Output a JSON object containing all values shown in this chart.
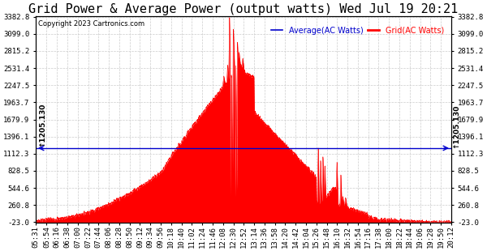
{
  "title": "Grid Power & Average Power (output watts) Wed Jul 19 20:21",
  "copyright": "Copyright 2023 Cartronics.com",
  "legend_avg": "Average(AC Watts)",
  "legend_grid": "Grid(AC Watts)",
  "ymin": -23.0,
  "ymax": 3382.8,
  "yticks": [
    -23.0,
    260.8,
    544.6,
    828.5,
    1112.3,
    1396.1,
    1679.9,
    1963.7,
    2247.5,
    2531.4,
    2815.2,
    3099.0,
    3382.8
  ],
  "hline_value": 1205.13,
  "hline_label": "1205.130",
  "avg_color": "#0000cc",
  "grid_fill_color": "#ff0000",
  "background_color": "#ffffff",
  "grid_line_color": "#cccccc",
  "title_fontsize": 11,
  "tick_fontsize": 6.5,
  "copyright_fontsize": 6,
  "legend_fontsize": 7,
  "xtick_labels": [
    "05:31",
    "05:54",
    "06:16",
    "06:38",
    "07:00",
    "07:22",
    "07:44",
    "08:06",
    "08:28",
    "08:50",
    "09:12",
    "09:34",
    "09:56",
    "10:18",
    "10:40",
    "11:02",
    "11:24",
    "11:46",
    "12:08",
    "12:30",
    "12:52",
    "13:14",
    "13:36",
    "13:58",
    "14:20",
    "14:42",
    "15:04",
    "15:26",
    "15:48",
    "16:10",
    "16:32",
    "16:54",
    "17:16",
    "17:38",
    "18:00",
    "18:22",
    "18:44",
    "19:06",
    "19:28",
    "19:50",
    "20:12"
  ]
}
